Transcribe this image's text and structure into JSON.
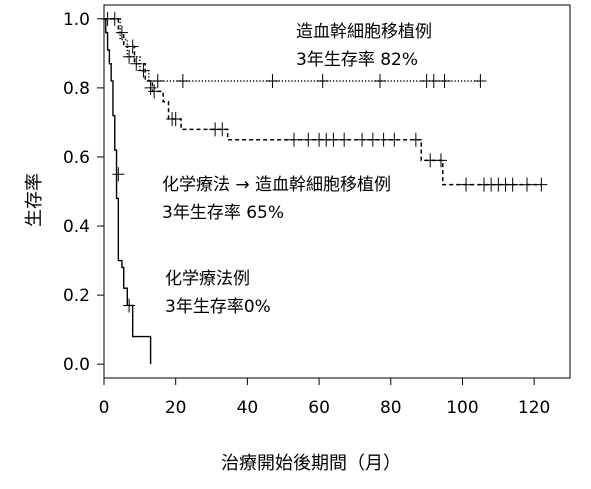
{
  "chart_data": {
    "type": "line",
    "subtype": "kaplan-meier",
    "xlabel": "治療開始後期間（月）",
    "ylabel": "生存率",
    "xlim": [
      0,
      130
    ],
    "ylim": [
      -0.04,
      1.04
    ],
    "x_ticks": [
      0,
      20,
      40,
      60,
      80,
      100,
      120
    ],
    "y_ticks": [
      0.0,
      0.2,
      0.4,
      0.6,
      0.8,
      1.0
    ],
    "y_tick_labels": [
      "0.0",
      "0.2",
      "0.4",
      "0.6",
      "0.8",
      "1.0"
    ],
    "grid": false,
    "series": [
      {
        "style": "dotted",
        "steps": [
          [
            0,
            1.0
          ],
          [
            4,
            1.0
          ],
          [
            4.5,
            0.94
          ],
          [
            6,
            0.94
          ],
          [
            6.5,
            0.89
          ],
          [
            9.5,
            0.89
          ],
          [
            10,
            0.85
          ],
          [
            12,
            0.85
          ],
          [
            12.5,
            0.82
          ],
          [
            105,
            0.82
          ]
        ],
        "censored": [
          [
            1,
            1.0
          ],
          [
            3,
            1.0
          ],
          [
            7,
            0.89
          ],
          [
            9,
            0.87
          ],
          [
            11,
            0.85
          ],
          [
            15,
            0.82
          ],
          [
            22,
            0.82
          ],
          [
            47,
            0.82
          ],
          [
            61,
            0.82
          ],
          [
            77,
            0.82
          ],
          [
            90,
            0.82
          ],
          [
            92,
            0.82
          ],
          [
            95,
            0.82
          ],
          [
            105,
            0.82
          ]
        ]
      },
      {
        "style": "dashed",
        "steps": [
          [
            0,
            1.0
          ],
          [
            3.5,
            1.0
          ],
          [
            4,
            0.96
          ],
          [
            5,
            0.96
          ],
          [
            5.5,
            0.92
          ],
          [
            8,
            0.92
          ],
          [
            8.5,
            0.87
          ],
          [
            11,
            0.87
          ],
          [
            11.5,
            0.82
          ],
          [
            13,
            0.82
          ],
          [
            13.5,
            0.79
          ],
          [
            16,
            0.79
          ],
          [
            16.5,
            0.76
          ],
          [
            17.5,
            0.76
          ],
          [
            18,
            0.71
          ],
          [
            21,
            0.71
          ],
          [
            21.5,
            0.68
          ],
          [
            34,
            0.68
          ],
          [
            34.5,
            0.65
          ],
          [
            88,
            0.65
          ],
          [
            88.5,
            0.59
          ],
          [
            94,
            0.59
          ],
          [
            94.5,
            0.52
          ],
          [
            122,
            0.52
          ]
        ],
        "censored": [
          [
            5,
            0.96
          ],
          [
            8,
            0.92
          ],
          [
            13,
            0.8
          ],
          [
            14,
            0.79
          ],
          [
            19,
            0.71
          ],
          [
            20,
            0.71
          ],
          [
            31,
            0.68
          ],
          [
            33,
            0.68
          ],
          [
            53,
            0.65
          ],
          [
            57,
            0.65
          ],
          [
            60,
            0.65
          ],
          [
            62,
            0.65
          ],
          [
            64,
            0.65
          ],
          [
            67,
            0.65
          ],
          [
            72,
            0.65
          ],
          [
            75,
            0.65
          ],
          [
            78,
            0.65
          ],
          [
            81,
            0.65
          ],
          [
            87,
            0.65
          ],
          [
            91,
            0.59
          ],
          [
            94,
            0.59
          ],
          [
            101,
            0.52
          ],
          [
            106,
            0.52
          ],
          [
            108,
            0.52
          ],
          [
            110,
            0.52
          ],
          [
            112,
            0.52
          ],
          [
            114,
            0.52
          ],
          [
            118,
            0.52
          ],
          [
            122,
            0.52
          ]
        ]
      },
      {
        "style": "solid",
        "steps": [
          [
            0,
            1.0
          ],
          [
            0.5,
            0.96
          ],
          [
            1,
            0.91
          ],
          [
            1.5,
            0.87
          ],
          [
            2,
            0.82
          ],
          [
            2.5,
            0.72
          ],
          [
            3,
            0.62
          ],
          [
            3.5,
            0.48
          ],
          [
            4,
            0.3
          ],
          [
            5,
            0.28
          ],
          [
            5.5,
            0.22
          ],
          [
            6.5,
            0.17
          ],
          [
            7.5,
            0.17
          ],
          [
            8,
            0.08
          ],
          [
            13,
            0.08
          ],
          [
            13,
            0.0
          ]
        ],
        "censored": [
          [
            4,
            0.55
          ],
          [
            7,
            0.17
          ]
        ]
      }
    ],
    "annotations": [
      {
        "lines": [
          "造血幹細胞移植例",
          "3年生存率  82%"
        ]
      },
      {
        "lines": [
          "化学療法 → 造血幹細胞移植例",
          "3年生存率 65%"
        ]
      },
      {
        "lines": [
          "化学療法例",
          "3年生存率0%"
        ]
      }
    ]
  }
}
